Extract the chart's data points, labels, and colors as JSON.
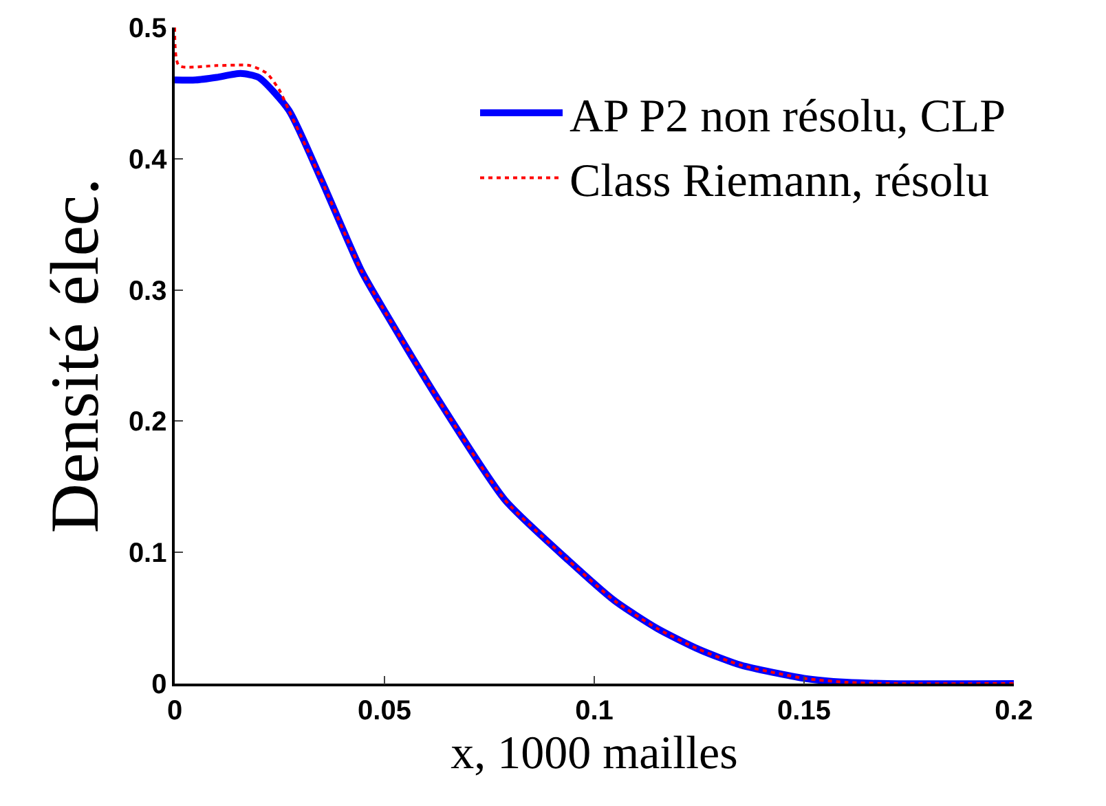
{
  "chart_data": {
    "type": "line",
    "xlabel": "x, 1000 mailles",
    "ylabel": "Densité élec.",
    "xlim": [
      0,
      0.2
    ],
    "xticks": [
      0,
      0.05,
      0.1,
      0.15,
      0.2
    ],
    "ylim": [
      0,
      0.5
    ],
    "yticks": [
      0,
      0.1,
      0.2,
      0.3,
      0.4,
      0.5
    ],
    "grid": false,
    "legend": "top right",
    "series": [
      {
        "name": "AP P2 non résolu, CLP",
        "color": "#0000ff",
        "line_style": "solid",
        "x": [
          0,
          0.005,
          0.01,
          0.0157,
          0.02,
          0.0272,
          0.0348,
          0.0446,
          0.0502,
          0.0633,
          0.0787,
          0.0938,
          0.1049,
          0.115,
          0.125,
          0.135,
          0.15,
          0.16,
          0.17,
          0.2
        ],
        "values": [
          0.46,
          0.46,
          0.462,
          0.465,
          0.462,
          0.437,
          0.385,
          0.314,
          0.283,
          0.214,
          0.14,
          0.094,
          0.063,
          0.042,
          0.026,
          0.014,
          0.004,
          0.001,
          0,
          0
        ]
      },
      {
        "name": "Class Riemann, résolu",
        "color": "#ff0000",
        "line_style": "dotted",
        "x": [
          0,
          0.001,
          0.01,
          0.018,
          0.022,
          0.025,
          0.0272,
          0.0348,
          0.0446,
          0.0502,
          0.0633,
          0.0787,
          0.0938,
          0.1049,
          0.115,
          0.125,
          0.135,
          0.15,
          0.16,
          0.17,
          0.2
        ],
        "values": [
          0.5,
          0.471,
          0.471,
          0.471,
          0.465,
          0.452,
          0.437,
          0.385,
          0.314,
          0.283,
          0.214,
          0.14,
          0.094,
          0.063,
          0.042,
          0.026,
          0.014,
          0.004,
          0.001,
          0,
          0
        ]
      }
    ]
  }
}
